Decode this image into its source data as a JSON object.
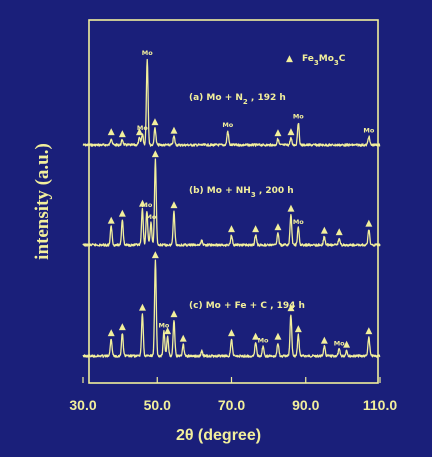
{
  "chart_data": {
    "type": "line",
    "xlabel": "2θ  (degree)",
    "ylabel": "intensity (a.u.)",
    "xlim": [
      30.0,
      110.0
    ],
    "x_ticks": [
      "30.0",
      "50.0",
      "70.0",
      "90.0",
      "110.0"
    ],
    "grid": false,
    "legend": {
      "symbol": "▲",
      "label": "Fe3Mo3C",
      "label_html": "Fe<tspan baseline-shift=\"sub\" font-size=\"7\">3</tspan>Mo<tspan baseline-shift=\"sub\" font-size=\"7\">3</tspan>C",
      "placement": "top-right"
    },
    "series": [
      {
        "name": "(a) Mo + N2 , 192 h",
        "label_html": "(a) Mo + N<tspan baseline-shift=\"sub\" font-size=\"7\">2</tspan> , 192 h",
        "peaks": [
          {
            "x": 37.6,
            "h": 0.08,
            "marker": "▲"
          },
          {
            "x": 40.6,
            "h": 0.06,
            "marker": "▲"
          },
          {
            "x": 45.2,
            "h": 0.08,
            "marker": "▲"
          },
          {
            "x": 46.0,
            "h": 0.13,
            "marker": "Mo"
          },
          {
            "x": 47.3,
            "h": 1.0,
            "marker": "Mo"
          },
          {
            "x": 49.4,
            "h": 0.2,
            "marker": "▲"
          },
          {
            "x": 54.5,
            "h": 0.1,
            "marker": "▲"
          },
          {
            "x": 69.0,
            "h": 0.16,
            "marker": "Mo"
          },
          {
            "x": 82.5,
            "h": 0.07,
            "marker": "▲"
          },
          {
            "x": 86.0,
            "h": 0.08,
            "marker": "▲"
          },
          {
            "x": 88.0,
            "h": 0.26,
            "marker": "Mo"
          },
          {
            "x": 107.0,
            "h": 0.1,
            "marker": "Mo"
          }
        ]
      },
      {
        "name": "(b) Mo + NH3 , 200 h",
        "label_html": "(b) Mo + NH<tspan baseline-shift=\"sub\" font-size=\"7\">3</tspan> , 200 h",
        "peaks": [
          {
            "x": 37.6,
            "h": 0.22,
            "marker": "▲"
          },
          {
            "x": 40.6,
            "h": 0.3,
            "marker": "▲"
          },
          {
            "x": 46.0,
            "h": 0.42,
            "marker": "▲"
          },
          {
            "x": 47.2,
            "h": 0.4,
            "marker": "Mo"
          },
          {
            "x": 48.3,
            "h": 0.26,
            "marker": "Mo"
          },
          {
            "x": 49.5,
            "h": 1.0,
            "marker": "▲"
          },
          {
            "x": 54.5,
            "h": 0.4,
            "marker": "▲"
          },
          {
            "x": 62.0,
            "h": 0.05,
            "marker": ""
          },
          {
            "x": 70.0,
            "h": 0.12,
            "marker": "▲"
          },
          {
            "x": 76.5,
            "h": 0.12,
            "marker": "▲"
          },
          {
            "x": 82.5,
            "h": 0.14,
            "marker": "▲"
          },
          {
            "x": 86.0,
            "h": 0.36,
            "marker": "▲"
          },
          {
            "x": 88.0,
            "h": 0.2,
            "marker": "Mo"
          },
          {
            "x": 95.0,
            "h": 0.1,
            "marker": "▲"
          },
          {
            "x": 99.0,
            "h": 0.08,
            "marker": "▲"
          },
          {
            "x": 107.0,
            "h": 0.18,
            "marker": "▲"
          }
        ]
      },
      {
        "name": "(c) Mo + Fe + C , 194 h",
        "label_html": "(c) Mo + Fe + C , 194 h",
        "peaks": [
          {
            "x": 37.6,
            "h": 0.18,
            "marker": "▲"
          },
          {
            "x": 40.6,
            "h": 0.24,
            "marker": "▲"
          },
          {
            "x": 46.0,
            "h": 0.45,
            "marker": "▲"
          },
          {
            "x": 49.5,
            "h": 1.0,
            "marker": "▲"
          },
          {
            "x": 51.8,
            "h": 0.26,
            "marker": "Mo"
          },
          {
            "x": 52.8,
            "h": 0.2,
            "marker": "▲"
          },
          {
            "x": 54.5,
            "h": 0.38,
            "marker": "▲"
          },
          {
            "x": 57.0,
            "h": 0.12,
            "marker": "▲"
          },
          {
            "x": 62.0,
            "h": 0.05,
            "marker": ""
          },
          {
            "x": 70.0,
            "h": 0.18,
            "marker": "▲"
          },
          {
            "x": 76.5,
            "h": 0.14,
            "marker": "▲"
          },
          {
            "x": 78.5,
            "h": 0.1,
            "marker": "Mo"
          },
          {
            "x": 82.5,
            "h": 0.14,
            "marker": "▲"
          },
          {
            "x": 86.0,
            "h": 0.44,
            "marker": "▲"
          },
          {
            "x": 88.0,
            "h": 0.22,
            "marker": "▲"
          },
          {
            "x": 95.0,
            "h": 0.1,
            "marker": "▲"
          },
          {
            "x": 99.0,
            "h": 0.07,
            "marker": "Mo"
          },
          {
            "x": 101.0,
            "h": 0.06,
            "marker": "▲"
          },
          {
            "x": 107.0,
            "h": 0.2,
            "marker": "▲"
          }
        ]
      }
    ]
  },
  "colors": {
    "background": "#1a1f7a",
    "ink": "#f2ef9c"
  }
}
